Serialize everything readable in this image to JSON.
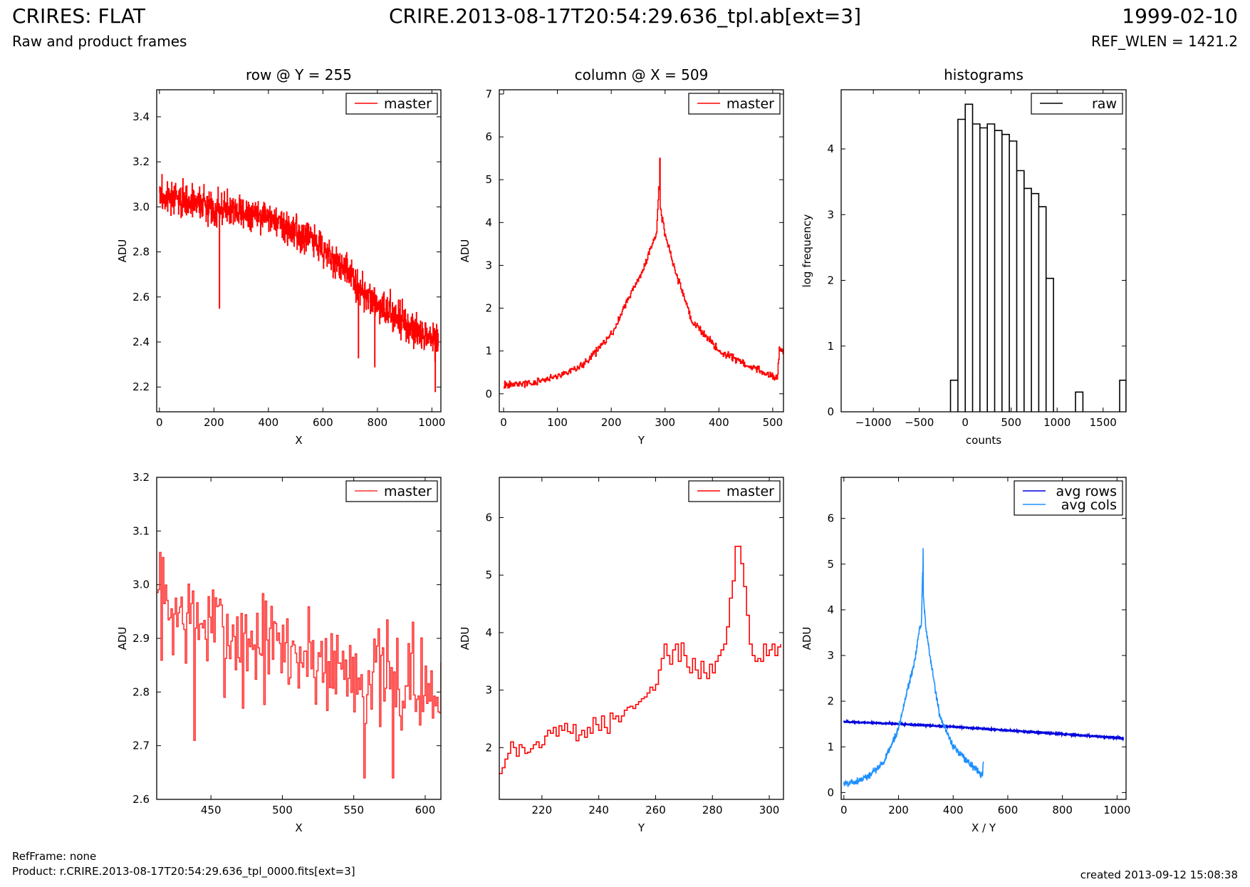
{
  "header": {
    "title_left": "CRIRES: FLAT",
    "subtitle_left": "Raw and product frames",
    "title_center": "CRIRE.2013-08-17T20:54:29.636_tpl.ab[ext=3]",
    "title_right": "1999-02-10",
    "subtitle_right": "REF_WLEN = 1421.2"
  },
  "footer": {
    "ref_frame": "RefFrame: none",
    "product": "Product: r.CRIRE.2013-08-17T20:54:29.636_tpl_0000.fits[ext=3]",
    "created": "created 2013-09-12 15:08:38"
  },
  "colors": {
    "master": "#ff0000",
    "master_zoom": "#ff3333",
    "raw": "#000000",
    "avg_rows": "#0000dd",
    "avg_cols": "#1e90ff"
  },
  "chart_data": [
    {
      "type": "line",
      "title": "row @ Y = 255",
      "xlabel": "X",
      "ylabel": "ADU",
      "xlim": [
        -10,
        1033
      ],
      "ylim": [
        2.09,
        3.52
      ],
      "xticks": [
        0,
        200,
        400,
        600,
        800,
        1000
      ],
      "yticks": [
        2.2,
        2.4,
        2.6,
        2.8,
        3.0,
        3.2,
        3.4
      ],
      "ytick_decimals": 1,
      "legend": "top-right",
      "series": [
        {
          "name": "master",
          "color": "#ff0000",
          "step": true,
          "noisy": true,
          "trend": [
            [
              0,
              3.05
            ],
            [
              200,
              3.0
            ],
            [
              400,
              2.96
            ],
            [
              600,
              2.82
            ],
            [
              800,
              2.56
            ],
            [
              1023,
              2.4
            ]
          ],
          "noise": 0.07,
          "spikes": [
            [
              220,
              2.55
            ],
            [
              730,
              2.33
            ],
            [
              790,
              2.29
            ],
            [
              1012,
              2.18
            ]
          ]
        }
      ]
    },
    {
      "type": "line",
      "title": "column @ X = 509",
      "xlabel": "Y",
      "ylabel": "ADU",
      "xlim": [
        -8,
        520
      ],
      "ylim": [
        -0.42,
        7.1
      ],
      "xticks": [
        0,
        100,
        200,
        300,
        400,
        500
      ],
      "yticks": [
        0,
        1,
        2,
        3,
        4,
        5,
        6,
        7
      ],
      "ytick_decimals": 0,
      "legend": "top-right",
      "series": [
        {
          "name": "master",
          "color": "#ff0000",
          "step": true,
          "noisy": true,
          "trend": [
            [
              0,
              0.2
            ],
            [
              50,
              0.25
            ],
            [
              100,
              0.4
            ],
            [
              150,
              0.7
            ],
            [
              200,
              1.4
            ],
            [
              230,
              2.2
            ],
            [
              260,
              2.9
            ],
            [
              275,
              3.5
            ],
            [
              284,
              3.7
            ],
            [
              288,
              4.9
            ],
            [
              291,
              4.3
            ],
            [
              300,
              3.7
            ],
            [
              320,
              2.8
            ],
            [
              350,
              1.7
            ],
            [
              400,
              1.0
            ],
            [
              450,
              0.7
            ],
            [
              500,
              0.4
            ],
            [
              508,
              0.35
            ],
            [
              512,
              1.0
            ],
            [
              520,
              1.0
            ]
          ],
          "noise": 0.08,
          "spikes": [
            [
              290,
              5.5
            ]
          ]
        }
      ]
    },
    {
      "type": "histogram",
      "title": "histograms",
      "xlabel": "counts",
      "ylabel": "log frequency",
      "xlim": [
        -1350,
        1750
      ],
      "ylim": [
        0,
        4.9
      ],
      "xticks": [
        -1000,
        -500,
        0,
        500,
        1000,
        1500
      ],
      "yticks": [
        0,
        1,
        2,
        3,
        4
      ],
      "ytick_decimals": 0,
      "legend": "top-right",
      "series": [
        {
          "name": "raw",
          "color": "#000000",
          "bins": [
            [
              -160,
              -80,
              0.48
            ],
            [
              -80,
              0,
              4.45
            ],
            [
              0,
              80,
              4.68
            ],
            [
              80,
              160,
              4.38
            ],
            [
              160,
              240,
              4.32
            ],
            [
              240,
              320,
              4.38
            ],
            [
              320,
              400,
              4.28
            ],
            [
              400,
              480,
              4.22
            ],
            [
              480,
              560,
              4.12
            ],
            [
              560,
              640,
              3.67
            ],
            [
              640,
              720,
              3.4
            ],
            [
              720,
              800,
              3.32
            ],
            [
              800,
              880,
              3.12
            ],
            [
              880,
              960,
              2.03
            ],
            [
              1200,
              1280,
              0.3
            ],
            [
              1680,
              1750,
              0.48
            ]
          ]
        }
      ]
    },
    {
      "type": "line",
      "title": "",
      "xlabel": "X",
      "ylabel": "ADU",
      "xlim": [
        412,
        611
      ],
      "ylim": [
        2.6,
        3.2
      ],
      "xticks": [
        450,
        500,
        550,
        600
      ],
      "yticks": [
        2.6,
        2.7,
        2.8,
        2.9,
        3.0,
        3.1,
        3.2
      ],
      "ytick_decimals": 1,
      "legend": "top-right",
      "series": [
        {
          "name": "master",
          "color": "#ff3333",
          "step": true,
          "noisy": true,
          "seed": 7,
          "trend": [
            [
              412,
              2.96
            ],
            [
              450,
              2.92
            ],
            [
              500,
              2.88
            ],
            [
              550,
              2.84
            ],
            [
              611,
              2.79
            ]
          ],
          "noise": 0.09,
          "spikes": [
            [
              414,
              3.06
            ],
            [
              438,
              2.71
            ],
            [
              472,
              2.77
            ],
            [
              557,
              2.64
            ],
            [
              577,
              2.64
            ],
            [
              591,
              2.93
            ]
          ]
        }
      ]
    },
    {
      "type": "line",
      "title": "",
      "xlabel": "Y",
      "ylabel": "ADU",
      "xlim": [
        205,
        305
      ],
      "ylim": [
        1.1,
        6.7
      ],
      "xticks": [
        220,
        240,
        260,
        280,
        300
      ],
      "yticks": [
        2,
        3,
        4,
        5,
        6
      ],
      "ytick_decimals": 0,
      "legend": "top-right",
      "series": [
        {
          "name": "master",
          "color": "#ff0000",
          "step": true,
          "points": [
            [
              205,
              1.55
            ],
            [
              206,
              1.65
            ],
            [
              207,
              1.8
            ],
            [
              208,
              1.9
            ],
            [
              209,
              2.1
            ],
            [
              210,
              2.0
            ],
            [
              211,
              1.85
            ],
            [
              212,
              2.05
            ],
            [
              213,
              2.0
            ],
            [
              214,
              1.9
            ],
            [
              215,
              1.92
            ],
            [
              216,
              1.98
            ],
            [
              217,
              2.05
            ],
            [
              218,
              2.1
            ],
            [
              219,
              2.0
            ],
            [
              220,
              2.05
            ],
            [
              221,
              2.2
            ],
            [
              222,
              2.3
            ],
            [
              223,
              2.25
            ],
            [
              224,
              2.35
            ],
            [
              225,
              2.2
            ],
            [
              226,
              2.38
            ],
            [
              227,
              2.3
            ],
            [
              228,
              2.42
            ],
            [
              229,
              2.28
            ],
            [
              230,
              2.25
            ],
            [
              231,
              2.4
            ],
            [
              232,
              2.12
            ],
            [
              233,
              2.22
            ],
            [
              234,
              2.3
            ],
            [
              235,
              2.18
            ],
            [
              236,
              2.35
            ],
            [
              237,
              2.25
            ],
            [
              238,
              2.52
            ],
            [
              239,
              2.4
            ],
            [
              240,
              2.3
            ],
            [
              241,
              2.55
            ],
            [
              242,
              2.35
            ],
            [
              243,
              2.25
            ],
            [
              244,
              2.6
            ],
            [
              245,
              2.5
            ],
            [
              246,
              2.55
            ],
            [
              247,
              2.45
            ],
            [
              248,
              2.55
            ],
            [
              249,
              2.65
            ],
            [
              250,
              2.7
            ],
            [
              251,
              2.72
            ],
            [
              252,
              2.68
            ],
            [
              253,
              2.75
            ],
            [
              254,
              2.8
            ],
            [
              255,
              2.85
            ],
            [
              256,
              2.88
            ],
            [
              257,
              2.95
            ],
            [
              258,
              3.05
            ],
            [
              259,
              3.0
            ],
            [
              260,
              3.1
            ],
            [
              261,
              3.35
            ],
            [
              262,
              3.55
            ],
            [
              263,
              3.8
            ],
            [
              264,
              3.6
            ],
            [
              265,
              3.45
            ],
            [
              266,
              3.7
            ],
            [
              267,
              3.8
            ],
            [
              268,
              3.5
            ],
            [
              269,
              3.82
            ],
            [
              270,
              3.6
            ],
            [
              271,
              3.4
            ],
            [
              272,
              3.3
            ],
            [
              273,
              3.55
            ],
            [
              274,
              3.35
            ],
            [
              275,
              3.2
            ],
            [
              276,
              3.5
            ],
            [
              277,
              3.3
            ],
            [
              278,
              3.2
            ],
            [
              279,
              3.45
            ],
            [
              280,
              3.3
            ],
            [
              281,
              3.5
            ],
            [
              282,
              3.6
            ],
            [
              283,
              3.7
            ],
            [
              284,
              3.8
            ],
            [
              285,
              4.1
            ],
            [
              286,
              4.6
            ],
            [
              287,
              4.9
            ],
            [
              288,
              5.5
            ],
            [
              289,
              5.5
            ],
            [
              290,
              5.2
            ],
            [
              291,
              4.8
            ],
            [
              292,
              4.3
            ],
            [
              293,
              3.8
            ],
            [
              294,
              3.6
            ],
            [
              295,
              3.5
            ],
            [
              296,
              3.55
            ],
            [
              297,
              3.5
            ],
            [
              298,
              3.8
            ],
            [
              299,
              3.6
            ],
            [
              300,
              3.7
            ],
            [
              301,
              3.8
            ],
            [
              302,
              3.6
            ],
            [
              303,
              3.75
            ],
            [
              304,
              3.8
            ]
          ]
        }
      ]
    },
    {
      "type": "line",
      "title": "",
      "xlabel": "X / Y",
      "ylabel": "ADU",
      "xlim": [
        -10,
        1033
      ],
      "ylim": [
        -0.15,
        6.9
      ],
      "xticks": [
        0,
        200,
        400,
        600,
        800,
        1000
      ],
      "yticks": [
        0,
        1,
        2,
        3,
        4,
        5,
        6
      ],
      "ytick_decimals": 0,
      "legend": "top-right",
      "series": [
        {
          "name": "avg rows",
          "color": "#0000dd",
          "step": false,
          "noisy": true,
          "seed": 11,
          "width": 2.4,
          "trend": [
            [
              0,
              1.55
            ],
            [
              200,
              1.5
            ],
            [
              400,
              1.44
            ],
            [
              600,
              1.36
            ],
            [
              800,
              1.28
            ],
            [
              1023,
              1.19
            ]
          ],
          "noise": 0.012,
          "spikes": []
        },
        {
          "name": "avg cols",
          "color": "#1e90ff",
          "step": false,
          "noisy": true,
          "seed": 5,
          "trend": [
            [
              0,
              0.2
            ],
            [
              50,
              0.25
            ],
            [
              100,
              0.4
            ],
            [
              150,
              0.7
            ],
            [
              200,
              1.4
            ],
            [
              230,
              2.2
            ],
            [
              260,
              2.9
            ],
            [
              275,
              3.5
            ],
            [
              284,
              3.7
            ],
            [
              288,
              4.8
            ],
            [
              291,
              4.3
            ],
            [
              300,
              3.6
            ],
            [
              320,
              2.8
            ],
            [
              350,
              1.7
            ],
            [
              400,
              1.0
            ],
            [
              450,
              0.7
            ],
            [
              500,
              0.4
            ],
            [
              508,
              0.4
            ],
            [
              511,
              0.7
            ]
          ],
          "noise": 0.08,
          "spikes": [
            [
              290,
              5.35
            ]
          ]
        }
      ]
    }
  ]
}
